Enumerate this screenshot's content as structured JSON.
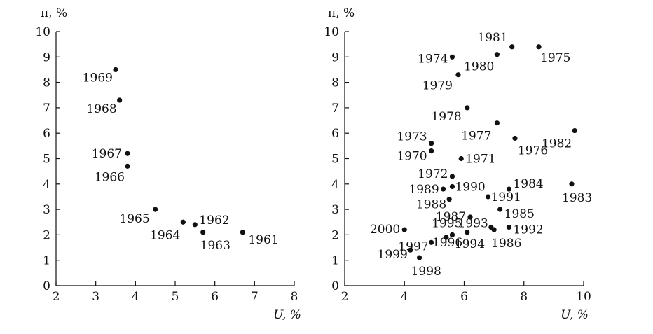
{
  "chart_data": [
    {
      "type": "scatter",
      "title": "",
      "xlabel": "U, %",
      "ylabel": "π, %",
      "xlim": [
        2,
        8
      ],
      "ylim": [
        0,
        10
      ],
      "xticks": [
        "2",
        "3",
        "4",
        "5",
        "6",
        "7",
        "8"
      ],
      "yticks": [
        "0",
        "1",
        "2",
        "3",
        "4",
        "5",
        "6",
        "7",
        "8",
        "9",
        "10"
      ],
      "grid": false,
      "points": [
        {
          "label": "1961",
          "x": 6.7,
          "y": 2.1
        },
        {
          "label": "1962",
          "x": 5.5,
          "y": 2.4
        },
        {
          "label": "1963",
          "x": 5.7,
          "y": 2.1
        },
        {
          "label": "1964",
          "x": 5.2,
          "y": 2.5
        },
        {
          "label": "1965",
          "x": 4.5,
          "y": 3.0
        },
        {
          "label": "1966",
          "x": 3.8,
          "y": 4.7
        },
        {
          "label": "1967",
          "x": 3.8,
          "y": 5.2
        },
        {
          "label": "1968",
          "x": 3.6,
          "y": 7.3
        },
        {
          "label": "1969",
          "x": 3.5,
          "y": 8.5
        }
      ]
    },
    {
      "type": "scatter",
      "title": "",
      "xlabel": "U, %",
      "ylabel": "π, %",
      "xlim": [
        2,
        10
      ],
      "ylim": [
        0,
        10
      ],
      "xticks": [
        "2",
        "4",
        "6",
        "8",
        "10"
      ],
      "yticks": [
        "0",
        "1",
        "2",
        "3",
        "4",
        "5",
        "6",
        "7",
        "8",
        "9",
        "10"
      ],
      "grid": false,
      "points": [
        {
          "label": "1970",
          "x": 4.9,
          "y": 5.3
        },
        {
          "label": "1971",
          "x": 5.9,
          "y": 5.0
        },
        {
          "label": "1972",
          "x": 5.6,
          "y": 4.3
        },
        {
          "label": "1973",
          "x": 4.9,
          "y": 5.6
        },
        {
          "label": "1974",
          "x": 5.6,
          "y": 9.0
        },
        {
          "label": "1975",
          "x": 8.5,
          "y": 9.4
        },
        {
          "label": "1976",
          "x": 7.7,
          "y": 5.8
        },
        {
          "label": "1977",
          "x": 7.1,
          "y": 6.4
        },
        {
          "label": "1978",
          "x": 6.1,
          "y": 7.0
        },
        {
          "label": "1979",
          "x": 5.8,
          "y": 8.3
        },
        {
          "label": "1980",
          "x": 7.1,
          "y": 9.1
        },
        {
          "label": "1981",
          "x": 7.6,
          "y": 9.4
        },
        {
          "label": "1982",
          "x": 9.7,
          "y": 6.1
        },
        {
          "label": "1983",
          "x": 9.6,
          "y": 4.0
        },
        {
          "label": "1984",
          "x": 7.5,
          "y": 3.8
        },
        {
          "label": "1985",
          "x": 7.2,
          "y": 3.0
        },
        {
          "label": "1986",
          "x": 7.0,
          "y": 2.2
        },
        {
          "label": "1987",
          "x": 6.2,
          "y": 2.7
        },
        {
          "label": "1988",
          "x": 5.5,
          "y": 3.4
        },
        {
          "label": "1989",
          "x": 5.3,
          "y": 3.8
        },
        {
          "label": "1990",
          "x": 5.6,
          "y": 3.9
        },
        {
          "label": "1991",
          "x": 6.8,
          "y": 3.5
        },
        {
          "label": "1992",
          "x": 7.5,
          "y": 2.3
        },
        {
          "label": "1993",
          "x": 6.9,
          "y": 2.3
        },
        {
          "label": "1994",
          "x": 6.1,
          "y": 2.1
        },
        {
          "label": "1995",
          "x": 5.6,
          "y": 2.0
        },
        {
          "label": "1996",
          "x": 5.4,
          "y": 1.9
        },
        {
          "label": "1997",
          "x": 4.9,
          "y": 1.7
        },
        {
          "label": "1998",
          "x": 4.5,
          "y": 1.1
        },
        {
          "label": "1999",
          "x": 4.2,
          "y": 1.4
        },
        {
          "label": "2000",
          "x": 4.0,
          "y": 2.2
        }
      ]
    }
  ]
}
